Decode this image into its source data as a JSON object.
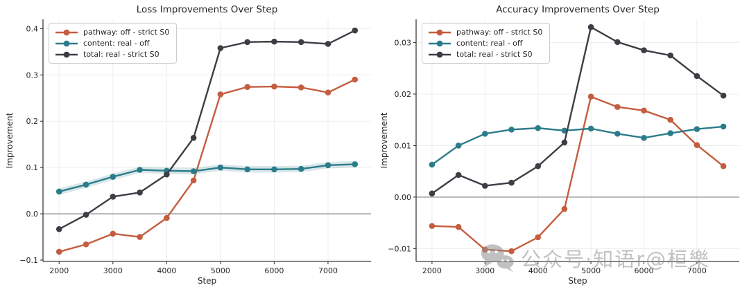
{
  "watermark": {
    "text": "公众号·知语r@桓樂",
    "icon": "wechat-icon"
  },
  "colors": {
    "pathway": "#c45d3f",
    "content": "#2b7c8a",
    "total": "#3b3e44",
    "zero_line": "#7f7f7f",
    "grid": "#ededed",
    "spine": "#3a3a3a",
    "tick_text": "#262626",
    "watermark": "#8f8f8f"
  },
  "chart_data": [
    {
      "type": "line",
      "title": "Loss Improvements Over Step",
      "xlabel": "Step",
      "ylabel": "Improvement",
      "grid": true,
      "zero_line": true,
      "legend_position": "upper left",
      "x": [
        2000,
        2500,
        3000,
        3500,
        4000,
        4500,
        5000,
        5500,
        6000,
        6500,
        7000,
        7500
      ],
      "xlim": [
        1700,
        7800
      ],
      "ylim": [
        -0.103,
        0.42
      ],
      "xticks": [
        2000,
        3000,
        4000,
        5000,
        6000,
        7000
      ],
      "xtick_labels": [
        "2000",
        "3000",
        "4000",
        "5000",
        "6000",
        "7000"
      ],
      "yticks": [
        -0.1,
        0.0,
        0.1,
        0.2,
        0.3,
        0.4
      ],
      "ytick_labels": [
        "−0.1",
        "0.0",
        "0.1",
        "0.2",
        "0.3",
        "0.4"
      ],
      "series": [
        {
          "key": "pathway",
          "name": "pathway: off - strict S0",
          "color": "#c45d3f",
          "band": 0,
          "values": [
            -0.082,
            -0.066,
            -0.043,
            -0.05,
            -0.009,
            0.072,
            0.258,
            0.274,
            0.275,
            0.273,
            0.262,
            0.29
          ]
        },
        {
          "key": "content",
          "name": "content: real - off",
          "color": "#2b7c8a",
          "band": 0.007,
          "values": [
            0.048,
            0.063,
            0.08,
            0.095,
            0.093,
            0.092,
            0.1,
            0.096,
            0.096,
            0.097,
            0.105,
            0.107
          ]
        },
        {
          "key": "total",
          "name": "total: real - strict S0",
          "color": "#3b3e44",
          "band": 0,
          "values": [
            -0.033,
            -0.002,
            0.037,
            0.046,
            0.085,
            0.164,
            0.358,
            0.371,
            0.372,
            0.371,
            0.367,
            0.396
          ]
        }
      ]
    },
    {
      "type": "line",
      "title": "Accuracy Improvements Over Step",
      "xlabel": "Step",
      "ylabel": "Improvement",
      "grid": true,
      "zero_line": true,
      "legend_position": "upper left",
      "x": [
        2000,
        2500,
        3000,
        3500,
        4000,
        4500,
        5000,
        5500,
        6000,
        6500,
        7000,
        7500
      ],
      "xlim": [
        1700,
        7800
      ],
      "ylim": [
        -0.0125,
        0.0345
      ],
      "xticks": [
        2000,
        3000,
        4000,
        5000,
        6000,
        7000
      ],
      "xtick_labels": [
        "2000",
        "3000",
        "4000",
        "5000",
        "6000",
        "7000"
      ],
      "yticks": [
        -0.01,
        0.0,
        0.01,
        0.02,
        0.03
      ],
      "ytick_labels": [
        "−0.01",
        "0.00",
        "0.01",
        "0.02",
        "0.03"
      ],
      "series": [
        {
          "key": "pathway",
          "name": "pathway: off - strict S0",
          "color": "#c45d3f",
          "band": 0,
          "values": [
            -0.0056,
            -0.0058,
            -0.0102,
            -0.0105,
            -0.0078,
            -0.0023,
            0.0195,
            0.0175,
            0.0168,
            0.015,
            0.0101,
            0.006
          ]
        },
        {
          "key": "content",
          "name": "content: real - off",
          "color": "#2b7c8a",
          "band": 0,
          "values": [
            0.0063,
            0.01,
            0.0123,
            0.0131,
            0.0134,
            0.0129,
            0.0133,
            0.0123,
            0.0115,
            0.0124,
            0.0132,
            0.0137
          ]
        },
        {
          "key": "total",
          "name": "total: real - strict S0",
          "color": "#3b3e44",
          "band": 0,
          "values": [
            0.0007,
            0.0043,
            0.0022,
            0.0028,
            0.006,
            0.0106,
            0.033,
            0.0301,
            0.0285,
            0.0275,
            0.0235,
            0.0197
          ]
        }
      ]
    }
  ]
}
